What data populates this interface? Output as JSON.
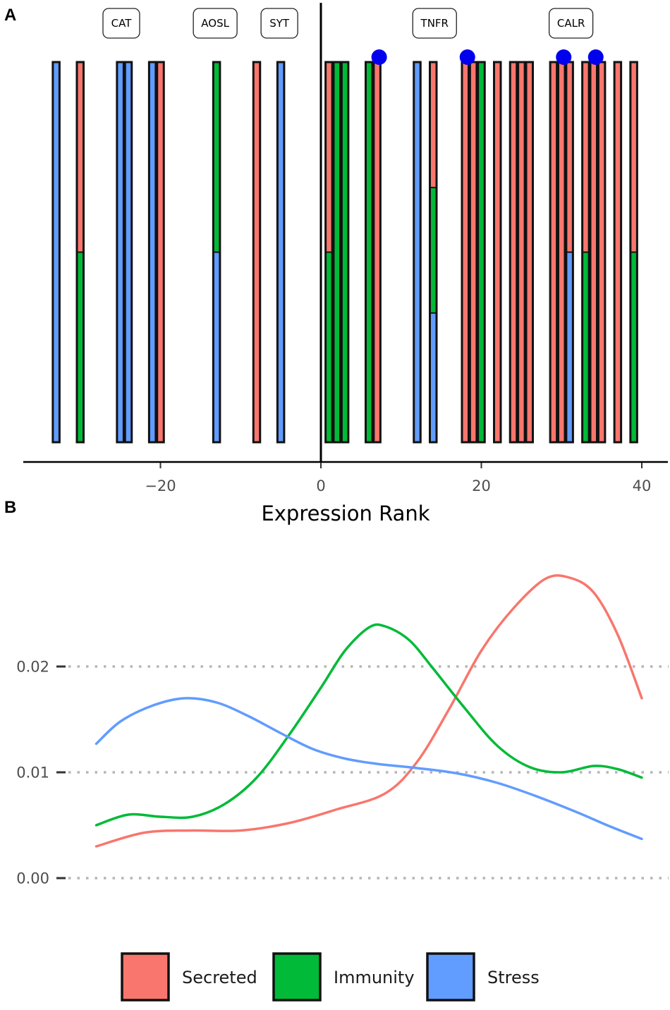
{
  "panels": {
    "a_label": "A",
    "b_label": "B"
  },
  "colors": {
    "Secreted": "#F8766D",
    "Immunity": "#00BA38",
    "Stress": "#619CFF",
    "marker": "#0000EE"
  },
  "chart_data": [
    {
      "type": "bar",
      "panel": "A",
      "title": "",
      "xlabel": "Expression Rank",
      "ylabel": "",
      "xlim": [
        -37,
        43.5
      ],
      "xticks": [
        -20,
        0,
        20,
        40
      ],
      "xtick_labels": [
        "−20",
        "0",
        "20",
        "40"
      ],
      "vline_x": 0,
      "bars": [
        {
          "x": -33,
          "fractions": {
            "Stress": 1
          }
        },
        {
          "x": -30,
          "fractions": {
            "Secreted": 0.5,
            "Immunity": 0.5
          }
        },
        {
          "x": -25,
          "fractions": {
            "Stress": 1
          }
        },
        {
          "x": -24,
          "fractions": {
            "Stress": 1
          }
        },
        {
          "x": -21,
          "fractions": {
            "Stress": 1
          }
        },
        {
          "x": -20,
          "fractions": {
            "Secreted": 1
          }
        },
        {
          "x": -13,
          "fractions": {
            "Immunity": 0.5,
            "Stress": 0.5
          }
        },
        {
          "x": -8,
          "fractions": {
            "Secreted": 1
          }
        },
        {
          "x": -5,
          "fractions": {
            "Stress": 1
          }
        },
        {
          "x": 1,
          "fractions": {
            "Secreted": 0.5,
            "Immunity": 0.5
          }
        },
        {
          "x": 2,
          "fractions": {
            "Immunity": 1
          }
        },
        {
          "x": 3,
          "fractions": {
            "Immunity": 1
          }
        },
        {
          "x": 6,
          "fractions": {
            "Immunity": 1
          }
        },
        {
          "x": 7,
          "fractions": {
            "Secreted": 1
          }
        },
        {
          "x": 12,
          "fractions": {
            "Stress": 1
          }
        },
        {
          "x": 14,
          "fractions": {
            "Secreted": 0.33,
            "Immunity": 0.33,
            "Stress": 0.34
          }
        },
        {
          "x": 18,
          "fractions": {
            "Secreted": 1
          }
        },
        {
          "x": 19,
          "fractions": {
            "Secreted": 1
          }
        },
        {
          "x": 20,
          "fractions": {
            "Immunity": 1
          }
        },
        {
          "x": 22,
          "fractions": {
            "Secreted": 1
          }
        },
        {
          "x": 24,
          "fractions": {
            "Secreted": 1
          }
        },
        {
          "x": 25,
          "fractions": {
            "Secreted": 1
          }
        },
        {
          "x": 26,
          "fractions": {
            "Secreted": 1
          }
        },
        {
          "x": 29,
          "fractions": {
            "Secreted": 1
          }
        },
        {
          "x": 30,
          "fractions": {
            "Secreted": 1
          }
        },
        {
          "x": 31,
          "fractions": {
            "Secreted": 0.5,
            "Stress": 0.5
          }
        },
        {
          "x": 33,
          "fractions": {
            "Secreted": 0.5,
            "Immunity": 0.5
          }
        },
        {
          "x": 34,
          "fractions": {
            "Secreted": 1
          }
        },
        {
          "x": 35,
          "fractions": {
            "Secreted": 1
          }
        },
        {
          "x": 37,
          "fractions": {
            "Secreted": 1
          }
        },
        {
          "x": 39,
          "fractions": {
            "Secreted": 0.5,
            "Immunity": 0.5
          }
        }
      ],
      "markers_x": [
        7,
        18,
        30,
        34
      ],
      "gene_labels": [
        {
          "x": -24,
          "text": "CAT"
        },
        {
          "x": -13,
          "text": "AOSL"
        },
        {
          "x": -5,
          "text": "SYT"
        },
        {
          "x": 14,
          "text": "TNFR"
        },
        {
          "x": 31,
          "text": "CALR"
        }
      ]
    },
    {
      "type": "line",
      "panel": "B",
      "title": "",
      "xlabel": "",
      "ylabel": "",
      "xlim": [
        -37,
        43.5
      ],
      "ylim": [
        0,
        0.029
      ],
      "yticks": [
        0,
        0.01,
        0.02
      ],
      "ytick_labels": [
        "0.00",
        "0.01",
        "0.02"
      ],
      "series": [
        {
          "name": "Secreted",
          "x": [
            -28,
            -22,
            -16,
            -10,
            -4,
            2,
            8,
            12,
            16,
            20,
            24,
            28,
            31,
            34,
            37,
            40
          ],
          "values": [
            0.003,
            0.0043,
            0.0045,
            0.0045,
            0.0052,
            0.0065,
            0.008,
            0.011,
            0.016,
            0.0215,
            0.0255,
            0.0283,
            0.0284,
            0.027,
            0.023,
            0.017
          ]
        },
        {
          "name": "Immunity",
          "x": [
            -28,
            -24,
            -20,
            -16,
            -12,
            -8,
            -4,
            0,
            3,
            6,
            8,
            11,
            14,
            18,
            22,
            26,
            30,
            34,
            37,
            40
          ],
          "values": [
            0.005,
            0.006,
            0.0058,
            0.0058,
            0.007,
            0.0095,
            0.0135,
            0.018,
            0.0215,
            0.0237,
            0.0238,
            0.0225,
            0.0198,
            0.016,
            0.0125,
            0.0105,
            0.01,
            0.0106,
            0.0103,
            0.0095
          ]
        },
        {
          "name": "Stress",
          "x": [
            -28,
            -25,
            -21,
            -17,
            -13,
            -9,
            -5,
            -1,
            3,
            7,
            12,
            17,
            22,
            27,
            32,
            36,
            40
          ],
          "values": [
            0.0127,
            0.0148,
            0.0163,
            0.017,
            0.0166,
            0.0153,
            0.0137,
            0.0122,
            0.0113,
            0.0108,
            0.0104,
            0.0099,
            0.009,
            0.0077,
            0.0062,
            0.0049,
            0.0037
          ]
        }
      ],
      "legend_position": "bottom",
      "legend": [
        "Secreted",
        "Immunity",
        "Stress"
      ]
    }
  ]
}
